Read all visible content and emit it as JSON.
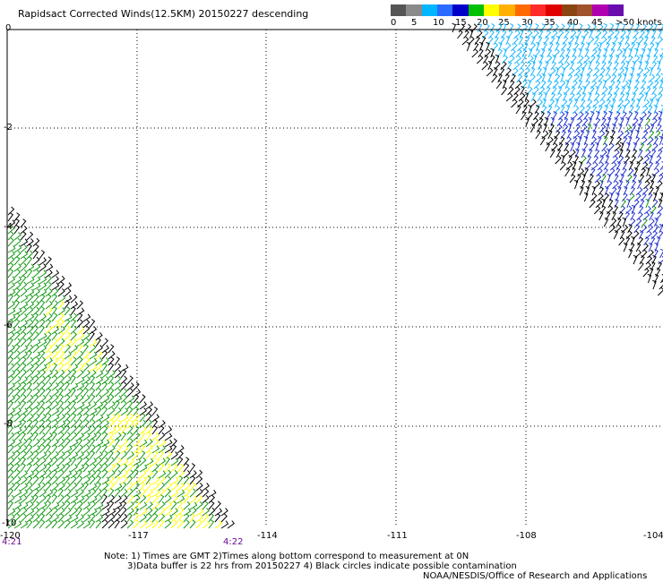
{
  "title": "Rapidsact Corrected Winds(12.5KM) 20150227 descending",
  "legend": {
    "colors": [
      "#555555",
      "#8a8a8a",
      "#00b7ff",
      "#2b6bff",
      "#0000c8",
      "#00c000",
      "#ffff00",
      "#ffb000",
      "#ff6a00",
      "#ff2a2a",
      "#e00000",
      "#8b4513",
      "#a0522d",
      "#b000b0",
      "#6a0dad"
    ],
    "labels": [
      "0",
      "5",
      "10",
      "15",
      "20",
      "25",
      "30",
      "35",
      "40",
      "45",
      ">50 knots"
    ]
  },
  "map": {
    "lon_range": [
      -120,
      -104
    ],
    "lat_range": [
      0,
      -10
    ],
    "y_labels": [
      "0",
      "-2",
      "-4",
      "-6",
      "-8",
      "-10"
    ],
    "x_labels": [
      "-120",
      "-117",
      "-114",
      "-111",
      "-108",
      "-104"
    ],
    "times": [
      "4:21",
      "4:22"
    ],
    "barb_colors": {
      "black": "#000000",
      "green": "#119911",
      "yellow": "#ffff00",
      "lightblue": "#1ab6ff",
      "blue": "#2233cc"
    }
  },
  "notes": {
    "line1": "Note: 1) Times are GMT 2)Times along bottom correspond to measurement at 0N",
    "line2": "3)Data buffer is 22 hrs from 20150227 4) Black circles indicate possible contamination"
  },
  "credit": "NOAA/NESDIS/Office of Research and Applications"
}
